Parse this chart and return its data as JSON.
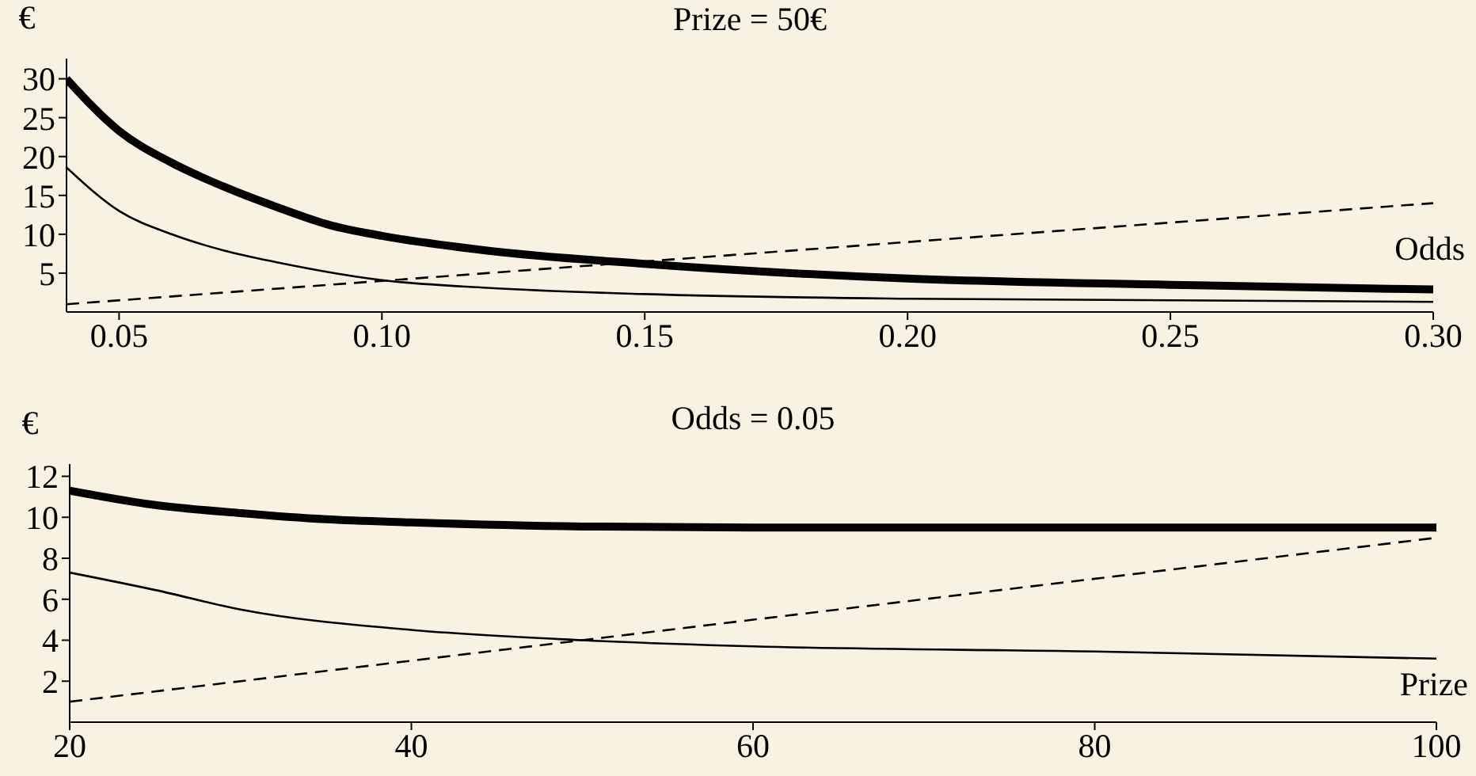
{
  "chart_data": [
    {
      "type": "line",
      "title": "Prize = 50€",
      "ylabel": "€",
      "xlabel": "Odds",
      "xlim": [
        0.04,
        0.3
      ],
      "xticks": [
        {
          "value": 0.05,
          "label": "0.05"
        },
        {
          "value": 0.1,
          "label": "0.10"
        },
        {
          "value": 0.15,
          "label": "0.15"
        },
        {
          "value": 0.2,
          "label": "0.20"
        },
        {
          "value": 0.25,
          "label": "0.25"
        },
        {
          "value": 0.3,
          "label": "0.30"
        }
      ],
      "ylim": [
        0,
        32.6
      ],
      "yticks": [
        5,
        10,
        15,
        20,
        25,
        30
      ],
      "marker": "none",
      "series": [
        {
          "color": "#000000",
          "line_style": "solid",
          "x": [
            0.04,
            0.05,
            0.06,
            0.07,
            0.08,
            0.09,
            0.1,
            0.12,
            0.15,
            0.2,
            0.25,
            0.3
          ],
          "values": [
            30,
            23.3,
            19.2,
            16.1,
            13.5,
            11.2,
            9.8,
            7.9,
            6.2,
            4.3,
            3.5,
            2.9
          ]
        },
        {
          "color": "#000000",
          "line_style": "solid",
          "x": [
            0.04,
            0.05,
            0.06,
            0.07,
            0.08,
            0.1,
            0.12,
            0.15,
            0.2,
            0.3
          ],
          "values": [
            18.6,
            13,
            10,
            7.9,
            6.4,
            4.1,
            3.1,
            2.3,
            1.7,
            1.3
          ]
        },
        {
          "color": "#000000",
          "line_style": "dashed",
          "x": [
            0.04,
            0.3
          ],
          "values": [
            1,
            14
          ]
        }
      ]
    },
    {
      "type": "line",
      "title": "Odds = 0.05",
      "ylabel": "€",
      "xlabel": "Prize",
      "xlim": [
        20,
        100
      ],
      "xticks": [
        20,
        40,
        60,
        80,
        100
      ],
      "ylim": [
        0,
        12.6
      ],
      "yticks": [
        2,
        4,
        6,
        8,
        10,
        12
      ],
      "marker": "none",
      "series": [
        {
          "color": "#000000",
          "line_style": "solid",
          "x": [
            20,
            25,
            30,
            35,
            40,
            50,
            60,
            80,
            100
          ],
          "values": [
            11.3,
            10.6,
            10.2,
            9.9,
            9.75,
            9.55,
            9.5,
            9.5,
            9.5
          ]
        },
        {
          "color": "#000000",
          "line_style": "solid",
          "x": [
            20,
            25,
            30,
            40,
            50,
            60,
            80,
            100
          ],
          "values": [
            7.3,
            6.45,
            5.5,
            4.5,
            4,
            3.7,
            3.45,
            3.1
          ]
        },
        {
          "color": "#000000",
          "line_style": "dashed",
          "x": [
            20,
            100
          ],
          "values": [
            1,
            9
          ]
        }
      ]
    }
  ]
}
